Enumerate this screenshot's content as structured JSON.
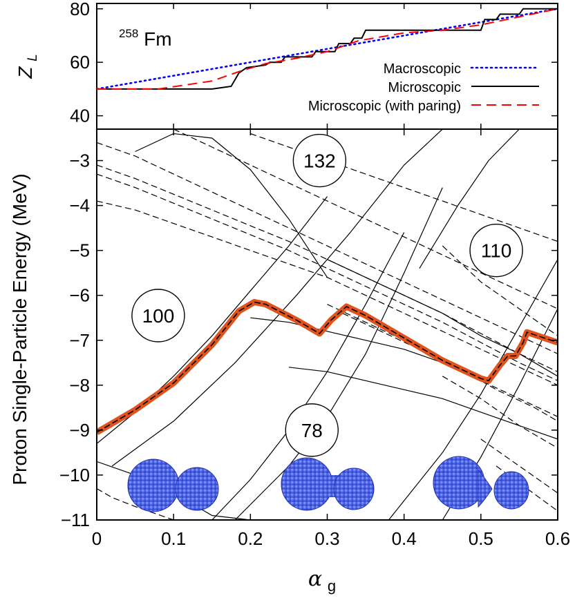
{
  "chart_data": [
    {
      "type": "line",
      "nucleus": {
        "mass_number": "258",
        "symbol": "Fm"
      },
      "ylabel": "Z",
      "ylabel_sub": "L",
      "xlim": [
        0,
        0.6
      ],
      "ylim": [
        35,
        82
      ],
      "yticks": [
        "40",
        "60",
        "80"
      ],
      "legend_position": "right",
      "series": [
        {
          "name": "Macroscopic",
          "color": "#0000ff",
          "style": "dotted",
          "x": [
            0,
            0.1,
            0.2,
            0.3,
            0.4,
            0.5,
            0.6
          ],
          "y": [
            50,
            55,
            60,
            65,
            70,
            75,
            80
          ]
        },
        {
          "name": "Microscopic",
          "color": "#000000",
          "style": "solid",
          "x": [
            0,
            0.15,
            0.175,
            0.185,
            0.195,
            0.22,
            0.225,
            0.24,
            0.245,
            0.28,
            0.285,
            0.31,
            0.315,
            0.33,
            0.335,
            0.345,
            0.35,
            0.5,
            0.505,
            0.52,
            0.525,
            0.55,
            0.555,
            0.6
          ],
          "y": [
            50,
            50,
            51,
            56,
            58,
            59,
            60,
            60,
            62,
            62,
            64,
            64,
            67,
            67,
            69,
            69,
            72,
            72,
            76,
            76,
            78,
            78,
            80,
            80
          ]
        },
        {
          "name": "Microscopic (with paring)",
          "color": "#ff0000",
          "style": "dashed",
          "x": [
            0,
            0.08,
            0.15,
            0.19,
            0.22,
            0.26,
            0.3,
            0.34,
            0.4,
            0.45,
            0.5,
            0.55,
            0.6
          ],
          "y": [
            50,
            50,
            53,
            57,
            59.5,
            61.5,
            64,
            68,
            71,
            72,
            74,
            77,
            80
          ]
        }
      ]
    },
    {
      "type": "line",
      "xlabel": "α",
      "xlabel_sub": "g",
      "ylabel": "Proton Single-Particle Energy (MeV)",
      "xlim": [
        0,
        0.6
      ],
      "ylim": [
        -11,
        -2.3
      ],
      "xticks": [
        "0",
        "0.1",
        "0.2",
        "0.3",
        "0.4",
        "0.5",
        "0.6"
      ],
      "yticks": [
        "−3",
        "−4",
        "−5",
        "−6",
        "−7",
        "−8",
        "−9",
        "−10",
        "−11"
      ],
      "magic_numbers": [
        {
          "label": "132",
          "x": 0.29,
          "y": -3.0
        },
        {
          "label": "100",
          "x": 0.08,
          "y": -6.45
        },
        {
          "label": "110",
          "x": 0.52,
          "y": -5.0
        },
        {
          "label": "78",
          "x": 0.28,
          "y": -9.0
        }
      ],
      "fermi_level": {
        "color": "#e0531c",
        "x": [
          0,
          0.05,
          0.1,
          0.15,
          0.185,
          0.205,
          0.22,
          0.26,
          0.29,
          0.305,
          0.325,
          0.35,
          0.4,
          0.45,
          0.5,
          0.51,
          0.525,
          0.535,
          0.545,
          0.555,
          0.56,
          0.6
        ],
        "y": [
          -9.05,
          -8.55,
          -7.95,
          -7.1,
          -6.35,
          -6.15,
          -6.2,
          -6.55,
          -6.85,
          -6.55,
          -6.25,
          -6.45,
          -6.95,
          -7.45,
          -7.85,
          -7.9,
          -7.55,
          -7.35,
          -7.35,
          -7.05,
          -6.82,
          -7.05
        ]
      },
      "level_curves": [
        {
          "style": "solid",
          "x": [
            0,
            0.05,
            0.1,
            0.15,
            0.2,
            0.25,
            0.3
          ],
          "y": [
            -9.3,
            -8.6,
            -7.8,
            -6.9,
            -5.9,
            -4.9,
            -3.8
          ]
        },
        {
          "style": "solid",
          "x": [
            0.02,
            0.1,
            0.18,
            0.26,
            0.33,
            0.4,
            0.45
          ],
          "y": [
            -9.8,
            -8.8,
            -7.5,
            -6.0,
            -4.6,
            -3.1,
            -2.3
          ]
        },
        {
          "style": "solid",
          "x": [
            0.15,
            0.2,
            0.25,
            0.3,
            0.35,
            0.4
          ],
          "y": [
            -11,
            -10.1,
            -9.0,
            -7.7,
            -6.2,
            -4.6
          ]
        },
        {
          "style": "solid",
          "x": [
            0.18,
            0.25,
            0.3,
            0.35,
            0.4,
            0.45
          ],
          "y": [
            -11,
            -9.8,
            -8.7,
            -7.3,
            -5.5,
            -3.6
          ]
        },
        {
          "style": "solid",
          "x": [
            0.38,
            0.45,
            0.5,
            0.55,
            0.6
          ],
          "y": [
            -11,
            -9.5,
            -8.2,
            -6.7,
            -5.2
          ]
        },
        {
          "style": "solid",
          "x": [
            0.45,
            0.5,
            0.55,
            0.6
          ],
          "y": [
            -11,
            -9.6,
            -8.0,
            -6.3
          ]
        },
        {
          "style": "solid",
          "x": [
            0.42,
            0.47,
            0.51,
            0.55,
            0.6
          ],
          "y": [
            -5.4,
            -4.0,
            -3.0,
            -2.3,
            -2.3
          ]
        },
        {
          "style": "solid",
          "x": [
            0.05,
            0.1,
            0.15,
            0.2,
            0.25,
            0.3
          ],
          "y": [
            -2.8,
            -2.4,
            -2.5,
            -3.2,
            -4.3,
            -5.6
          ]
        },
        {
          "style": "solid",
          "x": [
            0.2,
            0.25,
            0.3,
            0.35,
            0.4,
            0.45,
            0.5
          ],
          "y": [
            -6.5,
            -6.6,
            -6.8,
            -7.0,
            -7.2,
            -7.5,
            -7.8
          ]
        },
        {
          "style": "solid",
          "x": [
            0.25,
            0.3,
            0.35,
            0.4,
            0.45,
            0.5,
            0.55,
            0.6
          ],
          "y": [
            -7.6,
            -7.7,
            -7.9,
            -8.1,
            -8.3,
            -8.6,
            -8.9,
            -9.2
          ]
        },
        {
          "style": "solid",
          "x": [
            0.3,
            0.35,
            0.4,
            0.45,
            0.5,
            0.55,
            0.6
          ],
          "y": [
            -5.2,
            -5.6,
            -6.0,
            -6.4,
            -6.9,
            -7.3,
            -7.8
          ]
        },
        {
          "style": "solid",
          "x": [
            0,
            0.05,
            0.1,
            0.12,
            0.15,
            0.2
          ],
          "y": [
            -9.7,
            -10.0,
            -10.4,
            -10.6,
            -10.9,
            -11
          ]
        },
        {
          "style": "dashed",
          "x": [
            0,
            0.05,
            0.1,
            0.15,
            0.2,
            0.25,
            0.3,
            0.35,
            0.4,
            0.45,
            0.5,
            0.55,
            0.6
          ],
          "y": [
            -3.1,
            -3.4,
            -3.75,
            -4.1,
            -4.45,
            -4.8,
            -5.2,
            -5.6,
            -6.0,
            -6.4,
            -6.85,
            -7.3,
            -7.7
          ]
        },
        {
          "style": "dashed",
          "x": [
            0,
            0.05,
            0.1,
            0.15,
            0.2,
            0.25,
            0.3,
            0.35,
            0.4,
            0.45,
            0.5,
            0.55,
            0.6
          ],
          "y": [
            -3.3,
            -3.6,
            -3.95,
            -4.3,
            -4.65,
            -5.0,
            -5.4,
            -5.8,
            -6.2,
            -6.6,
            -7.05,
            -7.5,
            -7.9
          ]
        },
        {
          "style": "dashed",
          "x": [
            0,
            0.05,
            0.1,
            0.15,
            0.2,
            0.25,
            0.3,
            0.35,
            0.4,
            0.45,
            0.5,
            0.55,
            0.6
          ],
          "y": [
            -3.9,
            -4.1,
            -4.4,
            -4.7,
            -5.0,
            -5.3,
            -5.6,
            -6.0,
            -6.4,
            -6.8,
            -7.2,
            -7.6,
            -8.0
          ]
        },
        {
          "style": "dashed",
          "x": [
            0,
            0.05,
            0.1,
            0.15,
            0.2,
            0.25,
            0.3,
            0.35,
            0.4,
            0.45,
            0.5,
            0.55,
            0.6
          ],
          "y": [
            -2.6,
            -2.9,
            -3.3,
            -3.7,
            -4.1,
            -4.5,
            -4.9,
            -5.3,
            -5.7,
            -6.1,
            -6.5,
            -6.9,
            -7.3
          ]
        },
        {
          "style": "dashed",
          "x": [
            0.1,
            0.15,
            0.2,
            0.25,
            0.3,
            0.35,
            0.4,
            0.45,
            0.5,
            0.55,
            0.6
          ],
          "y": [
            -2.3,
            -2.7,
            -3.1,
            -3.5,
            -3.9,
            -4.3,
            -4.7,
            -5.1,
            -5.5,
            -5.9,
            -6.3
          ]
        },
        {
          "style": "dashed",
          "x": [
            0.2,
            0.25,
            0.3,
            0.35,
            0.4,
            0.45,
            0.5,
            0.55,
            0.6
          ],
          "y": [
            -2.4,
            -2.7,
            -3.0,
            -3.3,
            -3.6,
            -3.9,
            -4.2,
            -4.5,
            -4.8
          ]
        },
        {
          "style": "dashed",
          "x": [
            0.3,
            0.35,
            0.4,
            0.45,
            0.5,
            0.55,
            0.6
          ],
          "y": [
            -6.2,
            -6.6,
            -7.0,
            -7.4,
            -7.9,
            -8.3,
            -8.7
          ]
        },
        {
          "style": "dashed",
          "x": [
            0.32,
            0.37,
            0.42,
            0.47,
            0.52,
            0.57,
            0.6
          ],
          "y": [
            -6.4,
            -6.8,
            -7.2,
            -7.6,
            -8.1,
            -8.5,
            -8.8
          ]
        },
        {
          "style": "dashed",
          "x": [
            0.45,
            0.5,
            0.55,
            0.6
          ],
          "y": [
            -7.8,
            -8.3,
            -8.9,
            -9.4
          ]
        },
        {
          "style": "dashed",
          "x": [
            0.45,
            0.5,
            0.55,
            0.6
          ],
          "y": [
            -4.9,
            -5.7,
            -6.3,
            -6.9
          ]
        },
        {
          "style": "dashed",
          "x": [
            0.5,
            0.55,
            0.6
          ],
          "y": [
            -9.2,
            -9.8,
            -10.4
          ]
        },
        {
          "style": "dashed",
          "x": [
            0.52,
            0.56,
            0.6
          ],
          "y": [
            -9.8,
            -10.3,
            -10.8
          ]
        },
        {
          "style": "dashed",
          "x": [
            0,
            0.02,
            0.05,
            0.1,
            0.15
          ],
          "y": [
            -10.3,
            -10.5,
            -10.7,
            -11,
            -11
          ]
        }
      ]
    }
  ]
}
